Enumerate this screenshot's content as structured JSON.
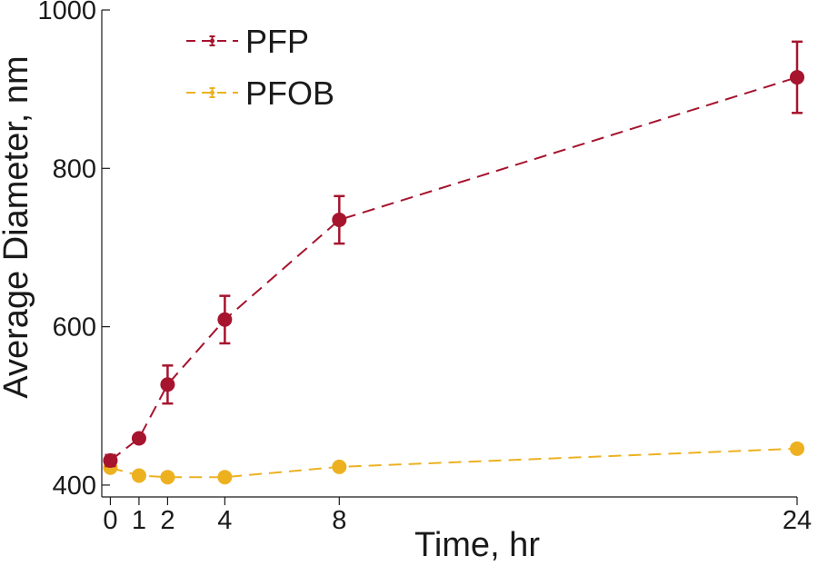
{
  "chart_data": {
    "type": "line",
    "xlabel": "Time, hr",
    "ylabel": "Average Diameter, nm",
    "x_ticks": [
      0,
      1,
      2,
      4,
      8,
      24
    ],
    "y_ticks": [
      400,
      600,
      800,
      1000
    ],
    "xlim": [
      -0.3,
      24
    ],
    "ylim": [
      385,
      1000
    ],
    "grid": false,
    "legend_position": "top-left",
    "series": [
      {
        "name": "PFP",
        "color": "#a6142e",
        "line_style": "dashed",
        "x": [
          0,
          1,
          2,
          4,
          8,
          24
        ],
        "y": [
          431,
          459,
          527,
          609,
          735,
          915
        ],
        "error": [
          7,
          4,
          24,
          30,
          30,
          45
        ]
      },
      {
        "name": "PFOB",
        "color": "#edb120",
        "line_style": "dashed",
        "x": [
          0,
          1,
          2,
          4,
          8,
          24
        ],
        "y": [
          422,
          412,
          410,
          410,
          423,
          446
        ],
        "error": [
          0,
          0,
          0,
          0,
          0,
          0
        ]
      }
    ]
  }
}
